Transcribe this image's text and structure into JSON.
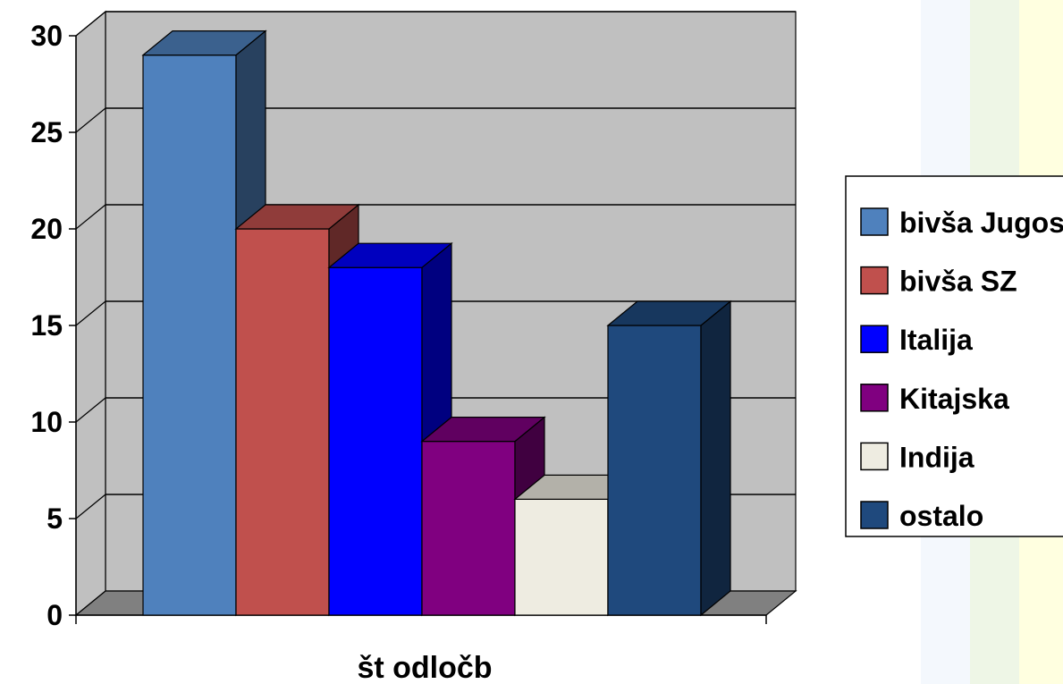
{
  "chart_data": {
    "type": "bar",
    "title": "",
    "xlabel": "št odločb",
    "ylabel": "",
    "categories": [
      "št odločb"
    ],
    "ylim": [
      0,
      30
    ],
    "yticks": [
      0,
      5,
      10,
      15,
      20,
      25,
      30
    ],
    "grid": true,
    "three_d": true,
    "legend_position": "right",
    "series": [
      {
        "name": "bivša Jugoslavija",
        "values": [
          29
        ],
        "color": "#4F81BD"
      },
      {
        "name": "bivša SZ",
        "values": [
          20
        ],
        "color": "#C0504D"
      },
      {
        "name": "Italija",
        "values": [
          18
        ],
        "color": "#0000FF"
      },
      {
        "name": "Kitajska",
        "values": [
          9
        ],
        "color": "#800080"
      },
      {
        "name": "Indija",
        "values": [
          6
        ],
        "color": "#EEECE1"
      },
      {
        "name": "ostalo",
        "values": [
          15
        ],
        "color": "#1F497D"
      }
    ]
  },
  "colors": {
    "wall": "#C0C0C0",
    "floor": "#808080",
    "background_strips": [
      "#F4F8FD",
      "#EEF6E6",
      "#FFFFE0"
    ]
  }
}
